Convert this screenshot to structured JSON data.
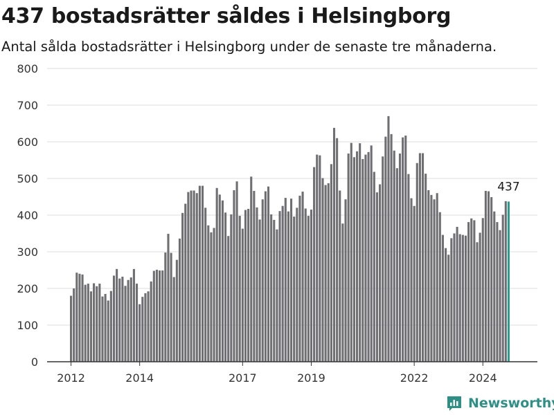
{
  "header": {
    "title": "437 bostadsrätter såldes i Helsingborg",
    "subtitle": "Antal sålda bostadsrätter i Helsingborg under de senaste tre månaderna."
  },
  "brand": {
    "name": "Newsworthy",
    "icon": "newsworthy-logo-icon",
    "color": "#2f8f86"
  },
  "colors": {
    "bar": "#6f6e73",
    "highlight": "#2a9d8f",
    "grid": "#dddddd",
    "axis": "#333333"
  },
  "chart_data": {
    "type": "bar",
    "x_unit": "month",
    "x_start": "2012-01",
    "ylim": [
      0,
      800
    ],
    "yticks": [
      0,
      100,
      200,
      300,
      400,
      500,
      600,
      700,
      800
    ],
    "xticks": [
      "2012",
      "2014",
      "2017",
      "2019",
      "2022",
      "2024"
    ],
    "grid": true,
    "values": [
      180,
      200,
      243,
      240,
      238,
      210,
      213,
      192,
      214,
      206,
      213,
      178,
      185,
      167,
      193,
      235,
      253,
      227,
      232,
      207,
      223,
      230,
      253,
      213,
      157,
      177,
      187,
      192,
      219,
      248,
      251,
      249,
      249,
      298,
      349,
      297,
      231,
      278,
      336,
      406,
      431,
      463,
      467,
      467,
      460,
      480,
      480,
      420,
      372,
      353,
      365,
      474,
      456,
      440,
      407,
      343,
      402,
      468,
      492,
      398,
      363,
      414,
      417,
      505,
      466,
      421,
      388,
      443,
      465,
      478,
      402,
      387,
      361,
      411,
      425,
      447,
      410,
      445,
      396,
      420,
      453,
      464,
      418,
      398,
      415,
      531,
      565,
      563,
      501,
      482,
      487,
      539,
      638,
      610,
      467,
      377,
      443,
      568,
      597,
      558,
      574,
      596,
      553,
      565,
      572,
      590,
      518,
      462,
      484,
      560,
      614,
      670,
      621,
      576,
      528,
      568,
      612,
      617,
      512,
      446,
      425,
      542,
      569,
      569,
      513,
      468,
      455,
      443,
      460,
      408,
      346,
      310,
      292,
      337,
      350,
      368,
      348,
      346,
      344,
      381,
      391,
      386,
      326,
      352,
      392,
      466,
      465,
      449,
      410,
      381,
      359,
      401,
      438,
      437
    ],
    "last_label": "437"
  }
}
